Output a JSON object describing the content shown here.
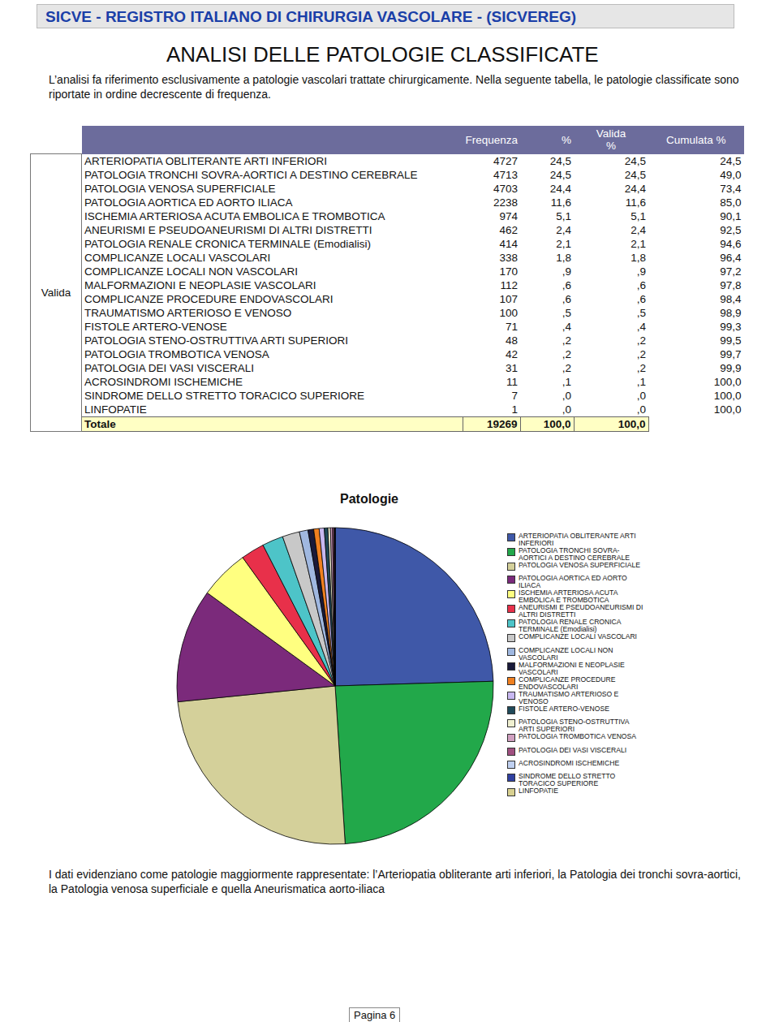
{
  "header": {
    "text": "SICVE  -  REGISTRO ITALIANO DI CHIRURGIA VASCOLARE  -  (SICVEREG)"
  },
  "title": "ANALISI DELLE PATOLOGIE CLASSIFICATE",
  "intro": "L’analisi fa riferimento esclusivamente a patologie vascolari trattate chirurgicamente. Nella seguente tabella, le patologie classificate sono riportate in ordine decrescente di frequenza.",
  "table": {
    "stub_label": "Valida",
    "columns": [
      "Frequenza",
      "%",
      "Valida %",
      "Cumulata %"
    ],
    "rows": [
      [
        "ARTERIOPATIA OBLITERANTE ARTI INFERIORI",
        "4727",
        "24,5",
        "24,5",
        "24,5"
      ],
      [
        "PATOLOGIA TRONCHI SOVRA-AORTICI A DESTINO CEREBRALE",
        "4713",
        "24,5",
        "24,5",
        "49,0"
      ],
      [
        "PATOLOGIA VENOSA SUPERFICIALE",
        "4703",
        "24,4",
        "24,4",
        "73,4"
      ],
      [
        "PATOLOGIA AORTICA ED AORTO ILIACA",
        "2238",
        "11,6",
        "11,6",
        "85,0"
      ],
      [
        "ISCHEMIA ARTERIOSA ACUTA EMBOLICA E TROMBOTICA",
        "974",
        "5,1",
        "5,1",
        "90,1"
      ],
      [
        "ANEURISMI E PSEUDOANEURISMI DI ALTRI DISTRETTI",
        "462",
        "2,4",
        "2,4",
        "92,5"
      ],
      [
        "PATOLOGIA RENALE CRONICA TERMINALE (Emodialisi)",
        "414",
        "2,1",
        "2,1",
        "94,6"
      ],
      [
        "COMPLICANZE LOCALI VASCOLARI",
        "338",
        "1,8",
        "1,8",
        "96,4"
      ],
      [
        "COMPLICANZE LOCALI NON VASCOLARI",
        "170",
        ",9",
        ",9",
        "97,2"
      ],
      [
        "MALFORMAZIONI E NEOPLASIE VASCOLARI",
        "112",
        ",6",
        ",6",
        "97,8"
      ],
      [
        "COMPLICANZE PROCEDURE ENDOVASCOLARI",
        "107",
        ",6",
        ",6",
        "98,4"
      ],
      [
        "TRAUMATISMO ARTERIOSO E VENOSO",
        "100",
        ",5",
        ",5",
        "98,9"
      ],
      [
        "FISTOLE ARTERO-VENOSE",
        "71",
        ",4",
        ",4",
        "99,3"
      ],
      [
        "PATOLOGIA STENO-OSTRUTTIVA ARTI SUPERIORI",
        "48",
        ",2",
        ",2",
        "99,5"
      ],
      [
        "PATOLOGIA TROMBOTICA VENOSA",
        "42",
        ",2",
        ",2",
        "99,7"
      ],
      [
        "PATOLOGIA DEI VASI VISCERALI",
        "31",
        ",2",
        ",2",
        "99,9"
      ],
      [
        "ACROSINDROMI ISCHEMICHE",
        "11",
        ",1",
        ",1",
        "100,0"
      ],
      [
        "SINDROME DELLO STRETTO TORACICO SUPERIORE",
        "7",
        ",0",
        ",0",
        "100,0"
      ],
      [
        "LINFOPATIE",
        "1",
        ",0",
        ",0",
        "100,0"
      ]
    ],
    "total": [
      "Totale",
      "19269",
      "100,0",
      "100,0"
    ]
  },
  "chart_data": {
    "type": "pie",
    "title": "Patologie",
    "legend": "right",
    "categories": [
      "ARTERIOPATIA OBLITERANTE ARTI INFERIORI",
      "PATOLOGIA TRONCHI SOVRA-AORTICI A DESTINO CEREBRALE",
      "PATOLOGIA VENOSA SUPERFICIALE",
      "PATOLOGIA AORTICA ED AORTO ILIACA",
      "ISCHEMIA ARTERIOSA ACUTA EMBOLICA E TROMBOTICA",
      "ANEURISMI E PSEUDOANEURISMI DI ALTRI DISTRETTI",
      "PATOLOGIA RENALE CRONICA TERMINALE (Emodialisi)",
      "COMPLICANZE LOCALI VASCOLARI",
      "COMPLICANZE LOCALI NON VASCOLARI",
      "MALFORMAZIONI E NEOPLASIE VASCOLARI",
      "COMPLICANZE PROCEDURE ENDOVASCOLARI",
      "TRAUMATISMO ARTERIOSO E VENOSO",
      "FISTOLE ARTERO-VENOSE",
      "PATOLOGIA STENO-OSTRUTTIVA ARTI SUPERIORI",
      "PATOLOGIA TROMBOTICA VENOSA",
      "PATOLOGIA DEI VASI VISCERALI",
      "ACROSINDROMI ISCHEMICHE",
      "SINDROME DELLO STRETTO TORACICO SUPERIORE",
      "LINFOPATIE"
    ],
    "values": [
      4727,
      4713,
      4703,
      2238,
      974,
      462,
      414,
      338,
      170,
      112,
      107,
      100,
      71,
      48,
      42,
      31,
      11,
      7,
      1
    ],
    "colors": [
      "#3f58a8",
      "#22a84a",
      "#d4d09a",
      "#7b2a7b",
      "#ffff80",
      "#e8304a",
      "#4dc4c8",
      "#c8c8c8",
      "#a0b8e0",
      "#1a1a3a",
      "#f08020",
      "#c8b8f0",
      "#204a5a",
      "#f0f0d0",
      "#d0a0c0",
      "#a05080",
      "#c0d0f0",
      "#3040a0",
      "#d8d090"
    ]
  },
  "conclusion": "I dati evidenziano come patologie maggiormente rappresentate: l’Arteriopatia obliterante arti inferiori, la Patologia dei tronchi sovra-aortici, la Patologia venosa superficiale e quella Aneurismatica aorto-iliaca",
  "footer": "Pagina 6"
}
